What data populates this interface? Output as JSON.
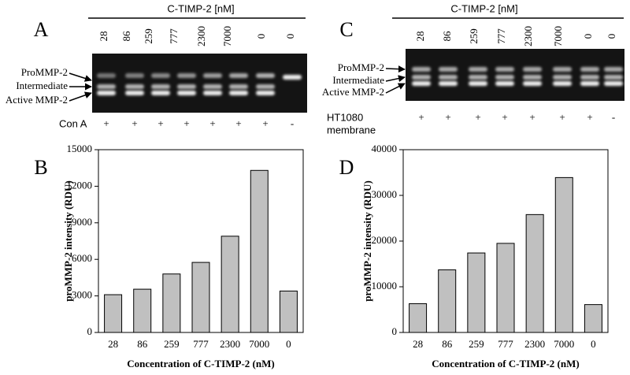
{
  "gels": [
    {
      "panel": "A",
      "header": "C-TIMP-2 [nM]",
      "lanes": [
        "28",
        "86",
        "259",
        "777",
        "2300",
        "7000",
        "0",
        "0"
      ],
      "bands": [
        "ProMMP-2",
        "Intermediate",
        "Active MMP-2"
      ],
      "treatment": [
        "Con A"
      ],
      "treatment_marks": [
        "+",
        "+",
        "+",
        "+",
        "+",
        "+",
        "+",
        "-"
      ]
    },
    {
      "panel": "C",
      "header": "C-TIMP-2 [nM]",
      "lanes": [
        "28",
        "86",
        "259",
        "777",
        "2300",
        "7000",
        "0",
        "0"
      ],
      "bands": [
        "ProMMP-2",
        "Intermediate",
        "Active MMP-2"
      ],
      "treatment": [
        "HT1080",
        "membrane"
      ],
      "treatment_marks": [
        "+",
        "+",
        "+",
        "+",
        "+",
        "+",
        "+",
        "-"
      ]
    }
  ],
  "chart_data": [
    {
      "type": "bar",
      "panel": "B",
      "y_label": "proMMP-2 intensity (RDU)",
      "x_label": "Concentration of C-TIMP-2 (nM)",
      "categories": [
        "28",
        "86",
        "259",
        "777",
        "2300",
        "7000",
        "0"
      ],
      "values": [
        3100,
        3550,
        4800,
        5750,
        7900,
        13300,
        3400
      ],
      "color": "#c0c0c0",
      "ylim": [
        0,
        15000
      ],
      "yticks": [
        0,
        3000,
        6000,
        9000,
        12000,
        15000
      ]
    },
    {
      "type": "bar",
      "panel": "D",
      "y_label": "proMMP-2 intensity (RDU)",
      "x_label": "Concentration of C-TIMP-2 (nM)",
      "categories": [
        "28",
        "86",
        "259",
        "777",
        "2300",
        "7000",
        "0"
      ],
      "values": [
        6300,
        13700,
        17400,
        19500,
        25800,
        33900,
        6100
      ],
      "color": "#c0c0c0",
      "ylim": [
        0,
        40000
      ],
      "yticks": [
        0,
        10000,
        20000,
        30000,
        40000
      ]
    }
  ]
}
